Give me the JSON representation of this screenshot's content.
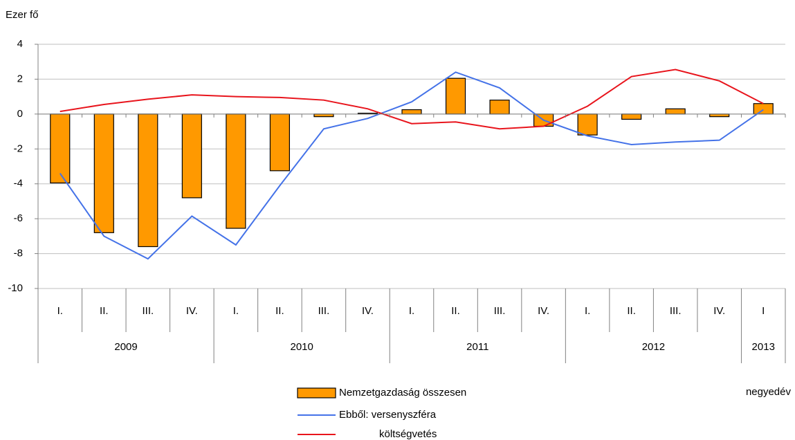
{
  "chart_data": {
    "type": "bar_line",
    "y_label": "Ezer fő",
    "x_label": "negyedév",
    "categories": [
      "I.",
      "II.",
      "III.",
      "IV.",
      "I.",
      "II.",
      "III.",
      "IV.",
      "I.",
      "II.",
      "III.",
      "IV.",
      "I.",
      "II.",
      "III.",
      "IV.",
      "I"
    ],
    "groups": [
      {
        "label": "2009",
        "span": 4
      },
      {
        "label": "2010",
        "span": 4
      },
      {
        "label": "2011",
        "span": 4
      },
      {
        "label": "2012",
        "span": 4
      },
      {
        "label": "2013",
        "span": 1
      }
    ],
    "series": [
      {
        "name": "Nemzetgazdaság összesen",
        "type": "bar",
        "color": "#ff9900",
        "values": [
          -3.95,
          -6.8,
          -7.6,
          -4.8,
          -6.55,
          -3.25,
          -0.15,
          0.05,
          0.25,
          2.05,
          0.8,
          -0.7,
          -1.2,
          -0.3,
          0.3,
          -0.15,
          0.6
        ]
      },
      {
        "name": "Ebből: versenyszféra",
        "type": "line",
        "color": "#4472e8",
        "values": [
          -3.4,
          -7.0,
          -8.3,
          -5.85,
          -7.5,
          -4.1,
          -0.85,
          -0.25,
          0.7,
          2.4,
          1.5,
          -0.35,
          -1.25,
          -1.75,
          -1.6,
          -1.5,
          0.25
        ]
      },
      {
        "name": "költségvetés",
        "type": "line",
        "color": "#e8141c",
        "values": [
          0.15,
          0.55,
          0.85,
          1.1,
          1.0,
          0.95,
          0.8,
          0.3,
          -0.55,
          -0.45,
          -0.85,
          -0.7,
          0.45,
          2.15,
          2.55,
          1.9,
          0.6
        ]
      }
    ],
    "ylim": [
      -10,
      4
    ],
    "yticks": [
      4,
      2,
      0,
      -2,
      -4,
      -6,
      -8,
      -10
    ],
    "grid": true
  }
}
